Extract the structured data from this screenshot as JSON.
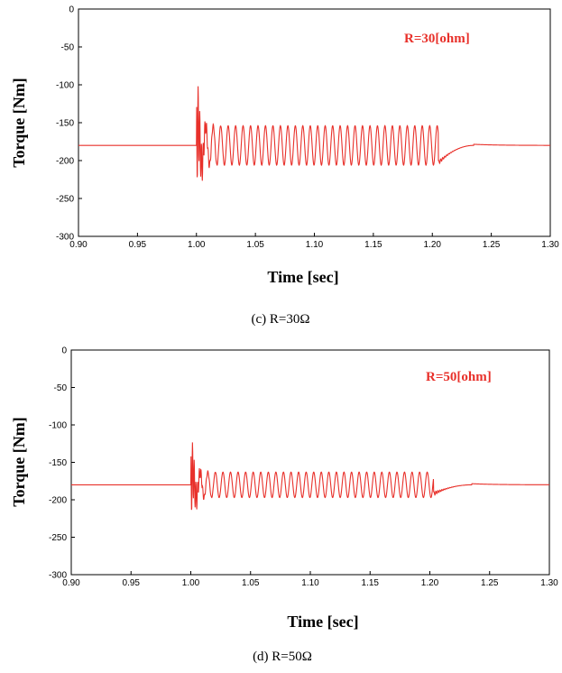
{
  "chart_data": [
    {
      "type": "line",
      "caption": "(c) R=30Ω",
      "annotation": "R=30[ohm]",
      "xlabel": "Time [sec]",
      "ylabel": "Torque [Nm]",
      "xlim": [
        0.9,
        1.3
      ],
      "ylim": [
        -300,
        0
      ],
      "xticks": [
        "0.90",
        "0.95",
        "1.00",
        "1.05",
        "1.10",
        "1.15",
        "1.20",
        "1.25",
        "1.30"
      ],
      "yticks": [
        "0",
        "-50",
        "-100",
        "-150",
        "-200",
        "-250",
        "-300"
      ],
      "grid": false,
      "line_color": "#e8302a",
      "steady_value": -180,
      "disturbance_start": 1.0,
      "initial_spike": -105,
      "oscillation": {
        "start": 1.0,
        "end": 1.205,
        "center": -180,
        "amplitude": 26,
        "frequency_hz": 158
      },
      "post_dip": -203,
      "recovery_end": 1.235
    },
    {
      "type": "line",
      "caption": "(d) R=50Ω",
      "annotation": "R=50[ohm]",
      "xlabel": "Time [sec]",
      "ylabel": "Torque [Nm]",
      "xlim": [
        0.9,
        1.3
      ],
      "ylim": [
        -300,
        0
      ],
      "xticks": [
        "0.90",
        "0.95",
        "1.00",
        "1.05",
        "1.10",
        "1.15",
        "1.20",
        "1.25",
        "1.30"
      ],
      "yticks": [
        "0",
        "-50",
        "-100",
        "-150",
        "-200",
        "-250",
        "-300"
      ],
      "grid": false,
      "line_color": "#e8302a",
      "steady_value": -180,
      "disturbance_start": 1.0,
      "initial_spike": -123,
      "oscillation": {
        "start": 1.0,
        "end": 1.203,
        "center": -180,
        "amplitude": 17,
        "frequency_hz": 158
      },
      "post_dip": -192,
      "recovery_end": 1.235
    }
  ]
}
